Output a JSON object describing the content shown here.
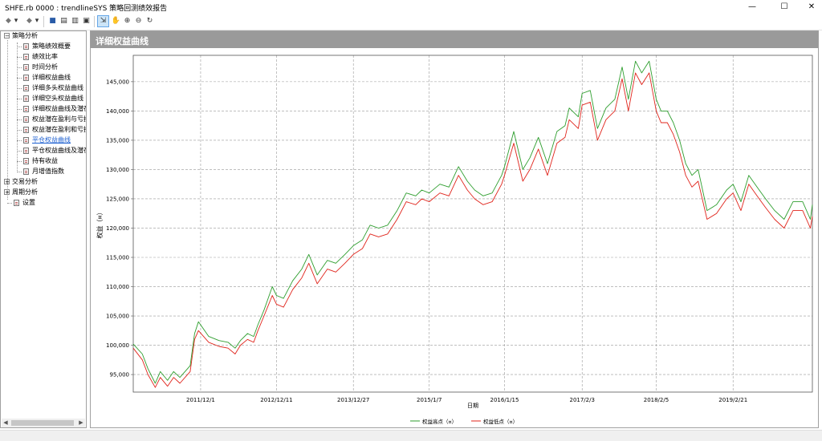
{
  "window": {
    "title": "SHFE.rb 0000 : trendlineSYS 策略回测绩效报告",
    "minimize": "—",
    "maximize": "☐",
    "close": "✕"
  },
  "toolbar": {
    "back": "◆",
    "back_drop": "▾",
    "forward": "◆",
    "forward_drop": "▾",
    "save": "■",
    "copy": "▤",
    "print": "▥",
    "view": "▣",
    "pointer": "⇲",
    "hand": "✋",
    "zoom_in": "⊕",
    "zoom_out": "⊖",
    "refresh": "↻"
  },
  "sidebar": {
    "groups": [
      {
        "label": "策略分析",
        "expand": "−",
        "children": [
          {
            "label": "策略绩效概要"
          },
          {
            "label": "绩效比率"
          },
          {
            "label": "时间分析"
          },
          {
            "label": "详细权益曲线"
          },
          {
            "label": "详细多头权益曲线"
          },
          {
            "label": "详细空头权益曲线"
          },
          {
            "label": "详细权益曲线及潜在"
          },
          {
            "label": "权益潜在盈利与亏损"
          },
          {
            "label": "权益潜在盈利和亏损"
          },
          {
            "label": "平仓权益曲线",
            "selected": true
          },
          {
            "label": "平仓权益曲线及潜在"
          },
          {
            "label": "持有收益"
          },
          {
            "label": "月增值指数"
          }
        ]
      },
      {
        "label": "交易分析",
        "expand": "+"
      },
      {
        "label": "周期分析",
        "expand": "+"
      }
    ],
    "settings": "设置",
    "scroll_left": "◀",
    "scroll_right": "▶"
  },
  "panel": {
    "title": "详细权益曲线"
  },
  "chart_data": {
    "type": "line",
    "ylabel": "权益（¤）",
    "xlabel": "日期",
    "ylim": [
      92000,
      149500
    ],
    "yticks": [
      "95,000",
      "100,000",
      "105,000",
      "110,000",
      "115,000",
      "120,000",
      "125,000",
      "130,000",
      "135,000",
      "140,000",
      "145,000"
    ],
    "ytick_values": [
      95000,
      100000,
      105000,
      110000,
      115000,
      120000,
      125000,
      130000,
      135000,
      140000,
      145000
    ],
    "xticks": [
      "2011/12/1",
      "2012/12/11",
      "2013/12/27",
      "2015/1/7",
      "2016/1/15",
      "2017/2/3",
      "2018/2/5",
      "2019/2/21"
    ],
    "x_start": "2011/1/1",
    "x_end": "2020/3/20",
    "grid": true,
    "legend": [
      "权益高点（¤）",
      "权益低点（¤）"
    ],
    "colors": {
      "high": "#2e9e2e",
      "low": "#e0241b"
    },
    "series": [
      {
        "name": "权益高点（¤）",
        "x": [
          "2011/1/1",
          "2011/2/15",
          "2011/3/15",
          "2011/4/20",
          "2011/5/15",
          "2011/6/20",
          "2011/7/20",
          "2011/8/20",
          "2011/10/10",
          "2011/11/1",
          "2011/11/20",
          "2012/1/10",
          "2012/3/1",
          "2012/4/15",
          "2012/5/20",
          "2012/6/15",
          "2012/7/20",
          "2012/8/20",
          "2012/9/10",
          "2012/10/10",
          "2012/11/20",
          "2012/12/11",
          "2013/1/15",
          "2013/3/1",
          "2013/4/15",
          "2013/5/20",
          "2013/7/1",
          "2013/8/20",
          "2013/10/1",
          "2013/11/15",
          "2013/12/27",
          "2014/2/10",
          "2014/3/20",
          "2014/5/1",
          "2014/6/15",
          "2014/8/1",
          "2014/9/15",
          "2014/11/1",
          "2014/12/1",
          "2015/1/7",
          "2015/3/1",
          "2015/4/15",
          "2015/6/1",
          "2015/7/15",
          "2015/8/20",
          "2015/10/1",
          "2015/11/15",
          "2016/1/1",
          "2016/1/15",
          "2016/3/1",
          "2016/4/15",
          "2016/5/20",
          "2016/7/1",
          "2016/8/15",
          "2016/10/1",
          "2016/11/10",
          "2016/12/1",
          "2017/1/15",
          "2017/2/3",
          "2017/3/15",
          "2017/4/20",
          "2017/6/1",
          "2017/7/15",
          "2017/8/20",
          "2017/9/20",
          "2017/10/25",
          "2017/11/25",
          "2018/1/1",
          "2018/2/5",
          "2018/3/1",
          "2018/4/1",
          "2018/5/1",
          "2018/6/1",
          "2018/7/1",
          "2018/8/1",
          "2018/9/1",
          "2018/10/15",
          "2018/12/1",
          "2019/1/20",
          "2019/2/21",
          "2019/4/1",
          "2019/5/10",
          "2019/6/20",
          "2019/8/1",
          "2019/9/15",
          "2019/11/1",
          "2019/12/15",
          "2020/2/1",
          "2020/3/10",
          "2020/3/20"
        ],
        "values": [
          100200,
          98500,
          96000,
          93500,
          95500,
          94000,
          95500,
          94500,
          96500,
          102000,
          104000,
          101500,
          100800,
          100500,
          99500,
          100800,
          102000,
          101500,
          103500,
          106000,
          110000,
          108500,
          108000,
          111000,
          113000,
          115500,
          112000,
          114500,
          114000,
          115500,
          117000,
          118000,
          120500,
          120000,
          120500,
          123000,
          126000,
          125500,
          126500,
          126000,
          127500,
          127000,
          130500,
          128000,
          126500,
          125500,
          126000,
          129000,
          130500,
          136500,
          130000,
          132000,
          135500,
          131000,
          136500,
          137500,
          140500,
          139000,
          143000,
          143500,
          137000,
          140500,
          142000,
          147500,
          142000,
          148500,
          146500,
          148500,
          142000,
          140000,
          140000,
          138000,
          135000,
          131000,
          129000,
          130000,
          123000,
          124000,
          126500,
          127500,
          124500,
          129000,
          127000,
          125000,
          123000,
          121500,
          124500,
          124500,
          121500,
          124000
        ]
      },
      {
        "name": "权益低点（¤）",
        "x": [
          "2011/1/1",
          "2011/2/15",
          "2011/3/15",
          "2011/4/20",
          "2011/5/15",
          "2011/6/20",
          "2011/7/20",
          "2011/8/20",
          "2011/10/10",
          "2011/11/1",
          "2011/11/20",
          "2012/1/10",
          "2012/3/1",
          "2012/4/15",
          "2012/5/20",
          "2012/6/15",
          "2012/7/20",
          "2012/8/20",
          "2012/9/10",
          "2012/10/10",
          "2012/11/20",
          "2012/12/11",
          "2013/1/15",
          "2013/3/1",
          "2013/4/15",
          "2013/5/20",
          "2013/7/1",
          "2013/8/20",
          "2013/10/1",
          "2013/11/15",
          "2013/12/27",
          "2014/2/10",
          "2014/3/20",
          "2014/5/1",
          "2014/6/15",
          "2014/8/1",
          "2014/9/15",
          "2014/11/1",
          "2014/12/1",
          "2015/1/7",
          "2015/3/1",
          "2015/4/15",
          "2015/6/1",
          "2015/7/15",
          "2015/8/20",
          "2015/10/1",
          "2015/11/15",
          "2016/1/1",
          "2016/1/15",
          "2016/3/1",
          "2016/4/15",
          "2016/5/20",
          "2016/7/1",
          "2016/8/15",
          "2016/10/1",
          "2016/11/10",
          "2016/12/1",
          "2017/1/15",
          "2017/2/3",
          "2017/3/15",
          "2017/4/20",
          "2017/6/1",
          "2017/7/15",
          "2017/8/20",
          "2017/9/20",
          "2017/10/25",
          "2017/11/25",
          "2018/1/1",
          "2018/2/5",
          "2018/3/1",
          "2018/4/1",
          "2018/5/1",
          "2018/6/1",
          "2018/7/1",
          "2018/8/1",
          "2018/9/1",
          "2018/10/15",
          "2018/12/1",
          "2019/1/20",
          "2019/2/21",
          "2019/4/1",
          "2019/5/10",
          "2019/6/20",
          "2019/8/1",
          "2019/9/15",
          "2019/11/1",
          "2019/12/15",
          "2020/2/1",
          "2020/3/10",
          "2020/3/20"
        ],
        "values": [
          99500,
          97500,
          95000,
          92800,
          94500,
          93000,
          94500,
          93500,
          95500,
          101000,
          102500,
          100500,
          99800,
          99500,
          98500,
          100000,
          101000,
          100500,
          102500,
          105000,
          108500,
          107000,
          106500,
          109500,
          111500,
          114000,
          110500,
          113000,
          112500,
          114000,
          115500,
          116500,
          119000,
          118500,
          119000,
          121500,
          124500,
          124000,
          125000,
          124500,
          126000,
          125500,
          129000,
          126500,
          125000,
          124000,
          124500,
          127500,
          129000,
          134500,
          128000,
          130000,
          133500,
          129000,
          134500,
          135500,
          138500,
          137000,
          141000,
          141500,
          135000,
          138500,
          140000,
          145500,
          140000,
          146500,
          144500,
          146500,
          140000,
          138000,
          138000,
          136000,
          133000,
          129000,
          127000,
          128000,
          121500,
          122500,
          125000,
          126000,
          123000,
          127500,
          125500,
          123500,
          121500,
          120000,
          123000,
          123000,
          120000,
          122000
        ]
      }
    ]
  }
}
